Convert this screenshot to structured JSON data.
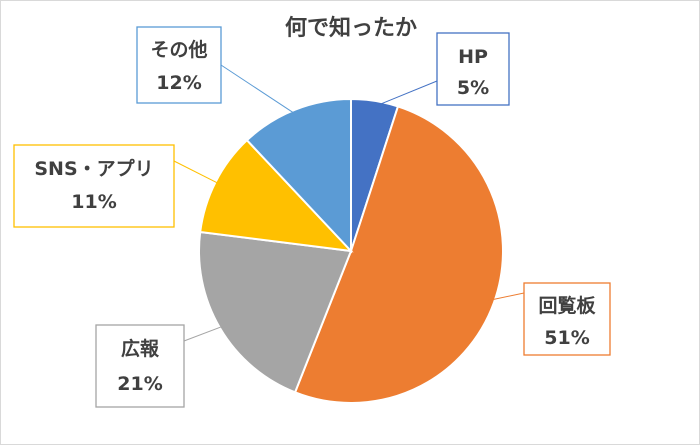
{
  "chart_data": {
    "type": "pie",
    "title": "何で知ったか",
    "categories": [
      "HP",
      "回覧板",
      "広報",
      "SNS・アプリ",
      "その他"
    ],
    "values": [
      5,
      51,
      21,
      11,
      12
    ],
    "value_labels": [
      "5%",
      "51%",
      "21%",
      "11%",
      "12%"
    ],
    "colors": [
      "#4472c4",
      "#ed7d31",
      "#a5a5a5",
      "#ffc000",
      "#5b9bd5"
    ],
    "start_angle_deg": 0,
    "direction": "clockwise",
    "legend": "none",
    "data_labels": "callouts"
  }
}
